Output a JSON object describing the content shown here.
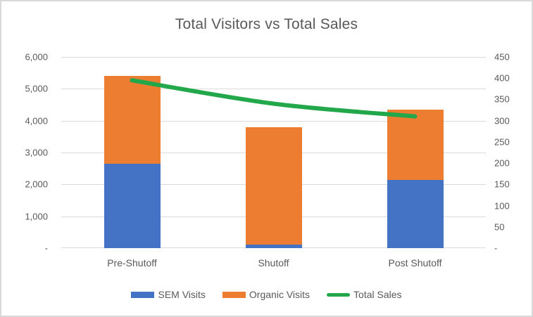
{
  "chart_data": {
    "type": "bar",
    "subtype": "stacked-bar-with-line",
    "title": "Total Visitors vs Total Sales",
    "categories": [
      "Pre-Shutoff",
      "Shutoff",
      "Post Shutoff"
    ],
    "stacked": true,
    "grid": "horizontal",
    "series": [
      {
        "name": "SEM Visits",
        "type": "bar",
        "axis": "left",
        "color": "#4472C4",
        "values": [
          2650,
          100,
          2150
        ]
      },
      {
        "name": "Organic Visits",
        "type": "bar",
        "axis": "left",
        "color": "#ED7D31",
        "values": [
          2750,
          3700,
          2200
        ]
      },
      {
        "name": "Total Sales",
        "type": "line",
        "axis": "right",
        "color": "#22A84A",
        "values": [
          395,
          340,
          310
        ]
      }
    ],
    "left_axis": {
      "min": 0,
      "max": 6000,
      "step": 1000,
      "tick_labels": [
        "-",
        "1,000",
        "2,000",
        "3,000",
        "4,000",
        "5,000",
        "6,000"
      ]
    },
    "right_axis": {
      "min": 0,
      "max": 450,
      "step": 50,
      "tick_labels": [
        "-",
        "50",
        "100",
        "150",
        "200",
        "250",
        "300",
        "350",
        "400",
        "450"
      ]
    },
    "legend": {
      "position": "bottom",
      "entries": [
        "SEM Visits",
        "Organic Visits",
        "Total Sales"
      ]
    },
    "colors": {
      "title_text": "#595959",
      "axis_text": "#595959",
      "gridline": "#D9D9D9",
      "border": "#D9D9D9"
    }
  }
}
